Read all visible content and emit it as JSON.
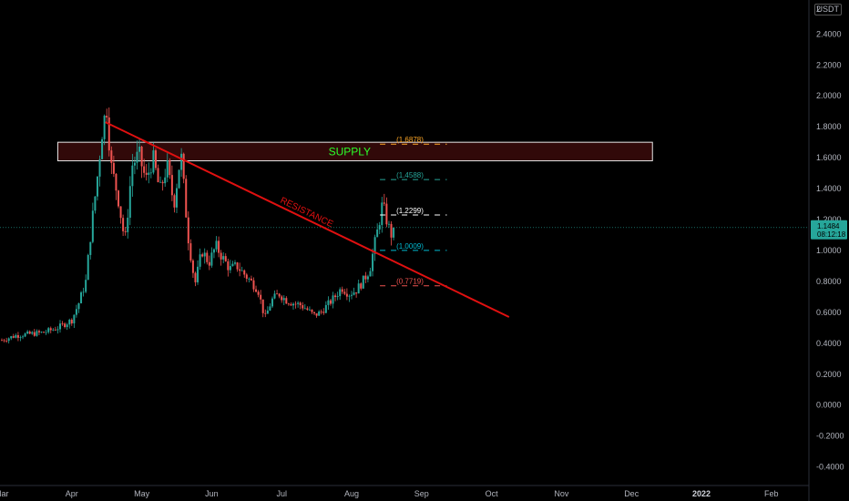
{
  "chart_data": {
    "type": "candlestick",
    "unit_label": "USDT",
    "y_axis": {
      "ylim": [
        -0.52,
        2.62
      ],
      "ticks": [
        "2.4000",
        "2.2000",
        "2.0000",
        "1.8000",
        "1.6000",
        "1.4000",
        "1.2000",
        "1.0000",
        "0.8000",
        "0.6000",
        "0.4000",
        "0.2000",
        "0.0000",
        "-0.2000",
        "-0.4000"
      ],
      "top_partial_label": "2"
    },
    "x_axis": {
      "ticks": [
        {
          "label": "Mar",
          "t": 0.0
        },
        {
          "label": "Apr",
          "t": 1.0
        },
        {
          "label": "May",
          "t": 2.0
        },
        {
          "label": "Jun",
          "t": 3.0
        },
        {
          "label": "Jul",
          "t": 4.0
        },
        {
          "label": "Aug",
          "t": 5.0
        },
        {
          "label": "Sep",
          "t": 6.0
        },
        {
          "label": "Oct",
          "t": 7.0
        },
        {
          "label": "Nov",
          "t": 8.0
        },
        {
          "label": "Dec",
          "t": 9.0
        },
        {
          "label": "2022",
          "t": 10.0,
          "bold": true
        },
        {
          "label": "Feb",
          "t": 11.0
        }
      ]
    },
    "current_price": {
      "value": "1.1484",
      "countdown": "08:12:18",
      "level": 1.1484,
      "color": "#26a69a"
    },
    "supply_zone": {
      "label": "SUPPLY",
      "y_low": 1.58,
      "y_high": 1.7,
      "t_start": 0.8,
      "t_end": 9.3
    },
    "resistance_line": {
      "label": "RESISTANCE",
      "t1": 1.48,
      "y1": 1.83,
      "t2": 7.25,
      "y2": 0.57,
      "color": "#e01010"
    },
    "fib_levels": [
      {
        "label": "(1.6878)",
        "value": 1.6878,
        "color": "#ffa726"
      },
      {
        "label": "(1.4588)",
        "value": 1.4588,
        "color": "#26a69a"
      },
      {
        "label": "(1.2299)",
        "value": 1.2299,
        "color": "#ffffff"
      },
      {
        "label": "(1.0009)",
        "value": 1.0009,
        "color": "#00bcd4"
      },
      {
        "label": "(0.7719)",
        "value": 0.7719,
        "color": "#ef5350"
      }
    ],
    "fib_t_range": [
      5.6,
      6.4
    ],
    "candle_path": [
      [
        0.0,
        0.42
      ],
      [
        0.2,
        0.45
      ],
      [
        0.4,
        0.46
      ],
      [
        0.6,
        0.47
      ],
      [
        0.8,
        0.5
      ],
      [
        1.0,
        0.55
      ],
      [
        1.1,
        0.66
      ],
      [
        1.2,
        0.8
      ],
      [
        1.28,
        1.15
      ],
      [
        1.36,
        1.45
      ],
      [
        1.44,
        1.8
      ],
      [
        1.5,
        1.92
      ],
      [
        1.56,
        1.55
      ],
      [
        1.66,
        1.35
      ],
      [
        1.76,
        1.05
      ],
      [
        1.86,
        1.55
      ],
      [
        1.96,
        1.62
      ],
      [
        2.06,
        1.45
      ],
      [
        2.16,
        1.6
      ],
      [
        2.26,
        1.38
      ],
      [
        2.36,
        1.55
      ],
      [
        2.46,
        1.3
      ],
      [
        2.56,
        1.63
      ],
      [
        2.66,
        1.1
      ],
      [
        2.76,
        0.78
      ],
      [
        2.86,
        1.0
      ],
      [
        2.96,
        0.92
      ],
      [
        3.06,
        1.03
      ],
      [
        3.16,
        0.95
      ],
      [
        3.26,
        0.88
      ],
      [
        3.36,
        0.9
      ],
      [
        3.46,
        0.85
      ],
      [
        3.56,
        0.8
      ],
      [
        3.66,
        0.75
      ],
      [
        3.76,
        0.56
      ],
      [
        3.86,
        0.68
      ],
      [
        3.96,
        0.72
      ],
      [
        4.06,
        0.68
      ],
      [
        4.16,
        0.66
      ],
      [
        4.26,
        0.65
      ],
      [
        4.36,
        0.62
      ],
      [
        4.46,
        0.58
      ],
      [
        4.56,
        0.6
      ],
      [
        4.66,
        0.65
      ],
      [
        4.76,
        0.7
      ],
      [
        4.86,
        0.76
      ],
      [
        4.96,
        0.72
      ],
      [
        5.06,
        0.74
      ],
      [
        5.16,
        0.8
      ],
      [
        5.26,
        0.88
      ],
      [
        5.32,
        1.02
      ],
      [
        5.38,
        1.15
      ],
      [
        5.44,
        1.3
      ],
      [
        5.5,
        1.2
      ],
      [
        5.56,
        1.1
      ],
      [
        5.62,
        1.15
      ]
    ]
  }
}
